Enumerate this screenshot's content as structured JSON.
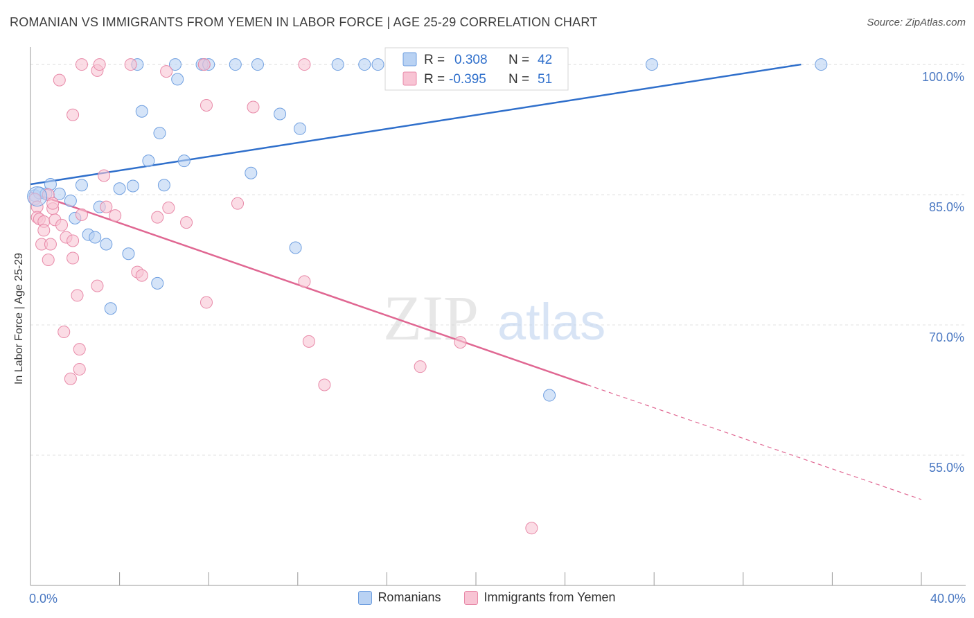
{
  "chart_data": {
    "type": "scatter",
    "title": "ROMANIAN VS IMMIGRANTS FROM YEMEN IN LABOR FORCE | AGE 25-29 CORRELATION CHART",
    "source": "Source: ZipAtlas.com",
    "ylabel": "In Labor Force | Age 25-29",
    "xlim": [
      0,
      40
    ],
    "ylim": [
      40,
      102
    ],
    "x_tick_labels": [
      "0.0%",
      "40.0%"
    ],
    "y_ticks": [
      {
        "value": 100,
        "label": "100.0%"
      },
      {
        "value": 85,
        "label": "85.0%"
      },
      {
        "value": 70,
        "label": "70.0%"
      },
      {
        "value": 55,
        "label": "55.0%"
      }
    ],
    "grid": true,
    "watermark": {
      "zip": "ZIP",
      "atlas": "atlas"
    },
    "legend_top": [
      {
        "r_label": "R =",
        "r_value": "0.308",
        "n_label": "N =",
        "n_value": "42"
      },
      {
        "r_label": "R =",
        "r_value": "-0.395",
        "n_label": "N =",
        "n_value": "51"
      }
    ],
    "series": [
      {
        "name": "Romanians",
        "color": "#6f9fe0",
        "fill": "#b9d2f3",
        "line_color": "#2f6fcb",
        "trend": {
          "x0": 0,
          "y0": 86.2,
          "x1": 34.6,
          "y1": 100
        },
        "points": [
          [
            0.2,
            84.9
          ],
          [
            0.4,
            85.2
          ],
          [
            0.7,
            85.1
          ],
          [
            0.9,
            86.2
          ],
          [
            1.3,
            85.1
          ],
          [
            1.8,
            84.3
          ],
          [
            2.3,
            86.1
          ],
          [
            2.0,
            82.3
          ],
          [
            2.6,
            80.4
          ],
          [
            2.9,
            80.1
          ],
          [
            3.1,
            83.6
          ],
          [
            3.4,
            79.3
          ],
          [
            4.0,
            85.7
          ],
          [
            4.4,
            78.2
          ],
          [
            4.6,
            86.0
          ],
          [
            3.6,
            71.9
          ],
          [
            5.0,
            94.6
          ],
          [
            5.3,
            88.9
          ],
          [
            5.8,
            92.1
          ],
          [
            6.0,
            86.1
          ],
          [
            5.7,
            74.8
          ],
          [
            6.6,
            98.3
          ],
          [
            6.9,
            88.9
          ],
          [
            7.8,
            100
          ],
          [
            7.7,
            100
          ],
          [
            8.0,
            100
          ],
          [
            9.2,
            100
          ],
          [
            10.2,
            100
          ],
          [
            9.9,
            87.5
          ],
          [
            11.2,
            94.3
          ],
          [
            12.1,
            92.6
          ],
          [
            11.9,
            78.9
          ],
          [
            4.8,
            100
          ],
          [
            6.5,
            100
          ],
          [
            13.8,
            100
          ],
          [
            15.0,
            100
          ],
          [
            15.6,
            100
          ],
          [
            16.7,
            100
          ],
          [
            17.9,
            100
          ],
          [
            27.9,
            100
          ],
          [
            35.5,
            100
          ],
          [
            23.3,
            61.9
          ]
        ]
      },
      {
        "name": "Immigrants from Yemen",
        "color": "#e889a8",
        "fill": "#f8c4d4",
        "line_color": "#e06792",
        "trend": {
          "x0": 0,
          "y0": 85.3,
          "x1": 25.0,
          "y1": 63.1
        },
        "trend_dashed": {
          "x0": 25.0,
          "y0": 63.1,
          "x1": 40.0,
          "y1": 49.9
        },
        "points": [
          [
            0.2,
            84.5
          ],
          [
            0.3,
            83.6
          ],
          [
            0.3,
            82.4
          ],
          [
            0.4,
            82.2
          ],
          [
            0.5,
            79.3
          ],
          [
            0.6,
            81.9
          ],
          [
            0.6,
            80.9
          ],
          [
            0.8,
            85.0
          ],
          [
            0.8,
            77.5
          ],
          [
            0.9,
            79.3
          ],
          [
            1.0,
            83.4
          ],
          [
            1.1,
            82.1
          ],
          [
            1.3,
            98.2
          ],
          [
            1.4,
            81.5
          ],
          [
            1.6,
            80.1
          ],
          [
            1.5,
            69.2
          ],
          [
            1.8,
            63.8
          ],
          [
            1.9,
            79.7
          ],
          [
            1.9,
            94.2
          ],
          [
            1.9,
            77.7
          ],
          [
            2.1,
            73.4
          ],
          [
            2.2,
            67.2
          ],
          [
            2.3,
            82.7
          ],
          [
            2.3,
            100
          ],
          [
            2.2,
            64.9
          ],
          [
            3.0,
            99.3
          ],
          [
            3.0,
            74.5
          ],
          [
            3.1,
            100
          ],
          [
            3.3,
            87.2
          ],
          [
            3.4,
            83.6
          ],
          [
            3.8,
            82.6
          ],
          [
            4.5,
            100
          ],
          [
            4.8,
            76.1
          ],
          [
            5.0,
            75.7
          ],
          [
            5.7,
            82.4
          ],
          [
            6.1,
            99.2
          ],
          [
            6.2,
            83.5
          ],
          [
            7.0,
            81.8
          ],
          [
            7.8,
            100
          ],
          [
            7.9,
            95.3
          ],
          [
            7.9,
            72.6
          ],
          [
            9.3,
            84.0
          ],
          [
            10.0,
            95.1
          ],
          [
            12.3,
            100
          ],
          [
            12.3,
            75.0
          ],
          [
            12.5,
            68.1
          ],
          [
            13.2,
            63.1
          ],
          [
            17.5,
            65.2
          ],
          [
            19.3,
            68.0
          ],
          [
            22.5,
            46.6
          ],
          [
            1.0,
            84.0
          ]
        ]
      }
    ]
  }
}
